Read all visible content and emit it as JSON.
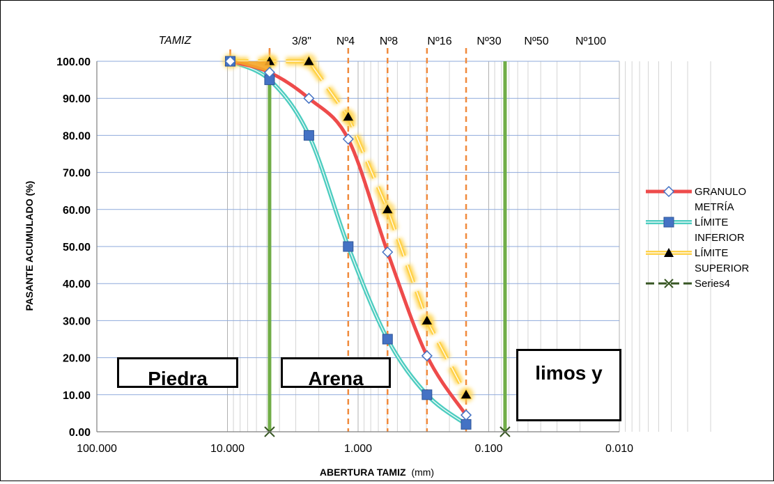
{
  "chart_data": {
    "type": "line",
    "title": "",
    "xlabel": "ABERTURA  TAMIZ",
    "xlabel_unit": "(mm)",
    "ylabel": "PASANTE  ACUMULADO (%)",
    "xscale": "log",
    "x_reversed": true,
    "xlim": [
      100,
      0.01
    ],
    "ylim": [
      0,
      100
    ],
    "grid": true,
    "legend_position": "right",
    "x_tick_labels": [
      "100.000",
      "10.000",
      "1.000",
      "0.100",
      "0.010"
    ],
    "y_tick_labels": [
      "0.00",
      "10.00",
      "20.00",
      "30.00",
      "40.00",
      "50.00",
      "60.00",
      "70.00",
      "80.00",
      "90.00",
      "100.00"
    ],
    "sieve_header": "TAMIZ",
    "sieves": [
      {
        "label": "3/8\"",
        "x": 4.76
      },
      {
        "label": "Nº4",
        "x": 1.19
      },
      {
        "label": "Nº8",
        "x": 0.595
      },
      {
        "label": "Nº16",
        "x": 0.297
      },
      {
        "label": "Nº30",
        "x": 0.149
      },
      {
        "label": "Nº50",
        "x": null
      },
      {
        "label": "Nº100",
        "x": null
      }
    ],
    "series": [
      {
        "name": "GRANULO METRÍA",
        "color": "#ee4b4b",
        "marker": "diamond",
        "x": [
          9.52,
          4.76,
          2.38,
          1.19,
          0.595,
          0.297,
          0.149
        ],
        "y": [
          100,
          97,
          90,
          79,
          48.5,
          20.5,
          4.5
        ]
      },
      {
        "name": "LÍMITE INFERIOR",
        "color": "#4ecdc0",
        "marker": "square",
        "x": [
          9.52,
          4.76,
          2.38,
          1.19,
          0.595,
          0.297,
          0.149
        ],
        "y": [
          100,
          95,
          80,
          50,
          25,
          10,
          2
        ]
      },
      {
        "name": "LÍMITE SUPERIOR",
        "color": "#ffd24a",
        "marker": "triangle",
        "x": [
          9.52,
          4.76,
          2.38,
          1.19,
          0.595,
          0.297,
          0.149
        ],
        "y": [
          100,
          100,
          100,
          85,
          60,
          30,
          10
        ]
      },
      {
        "name": "Series4",
        "color": "#375623",
        "marker": "x",
        "x": [
          4.76,
          0.075
        ],
        "y": [
          0,
          0
        ]
      }
    ],
    "boundaries": [
      {
        "x": 4.76,
        "color": "#70ad47"
      },
      {
        "x": 0.075,
        "color": "#70ad47"
      }
    ],
    "regions": [
      "Piedra",
      "Arena",
      "limos y"
    ]
  }
}
